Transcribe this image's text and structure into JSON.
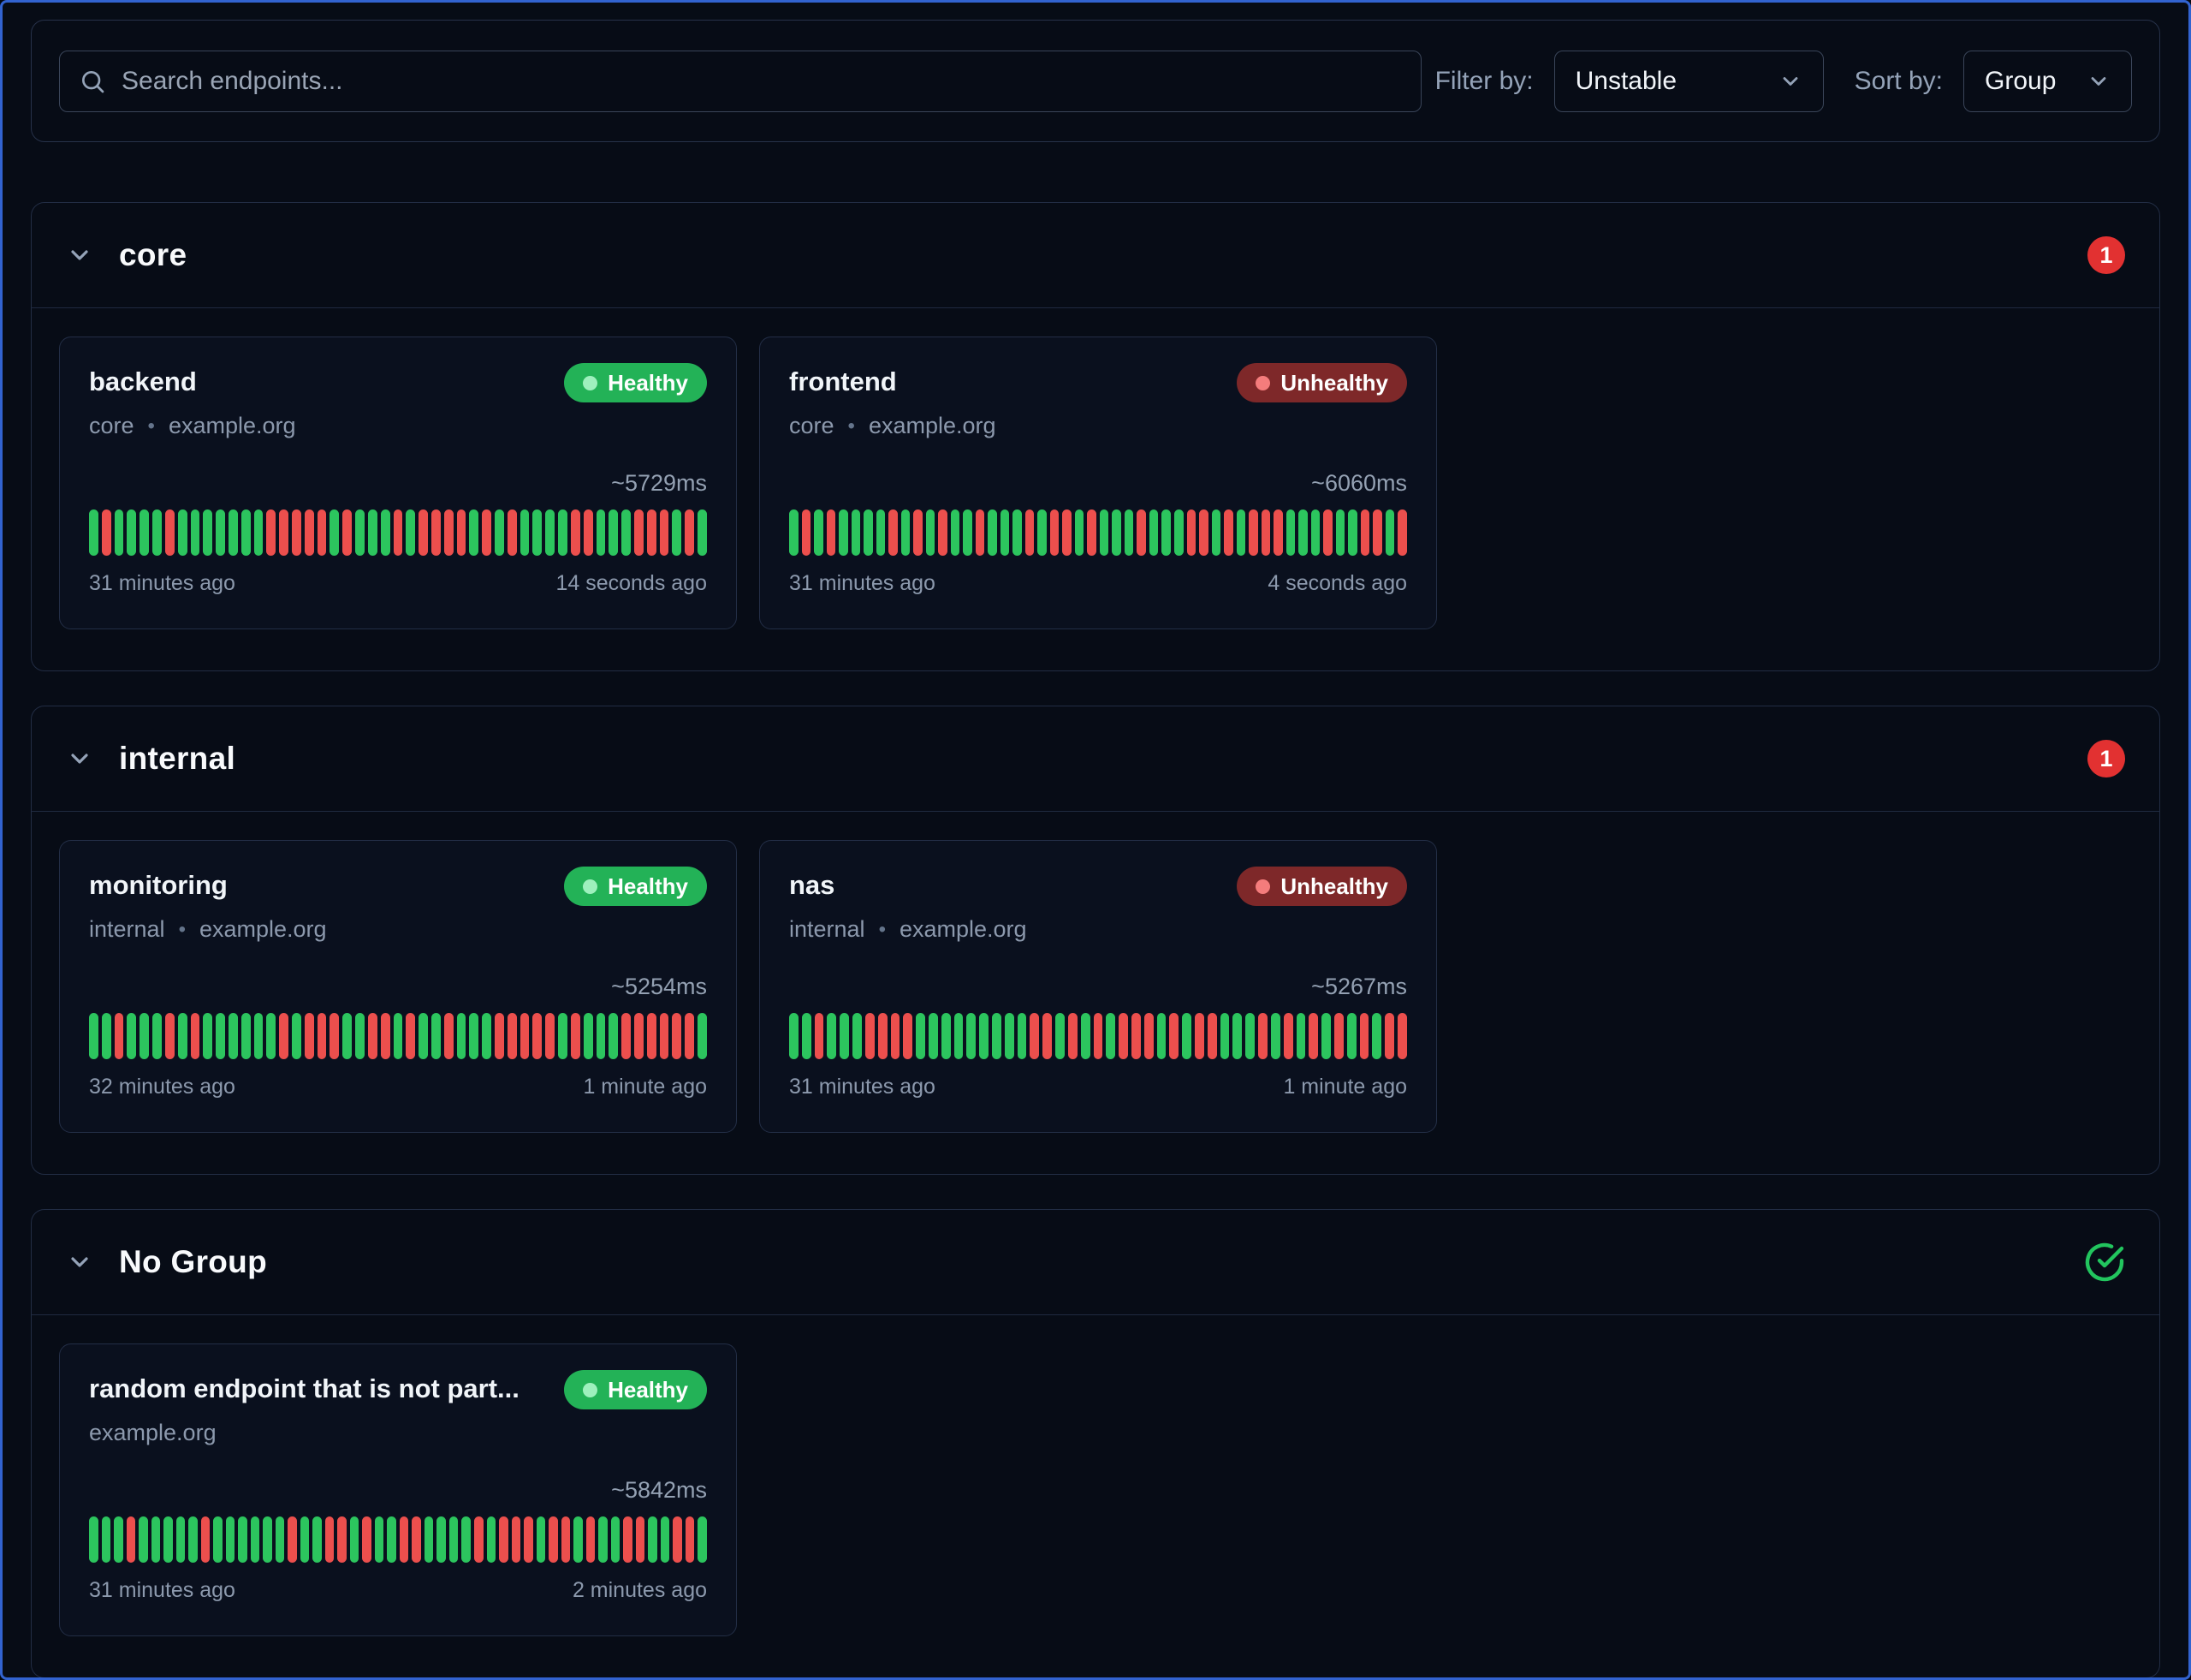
{
  "toolbar": {
    "search_placeholder": "Search endpoints...",
    "filter_label": "Filter by:",
    "filter_value": "Unstable",
    "sort_label": "Sort by:",
    "sort_value": "Group"
  },
  "ui": {
    "separator": "•",
    "icons": {
      "search": "magnifier",
      "dropdown": "chevron-down",
      "group_collapse": "chevron-down",
      "group_all_healthy": "check-circle"
    },
    "colors": {
      "healthy_badge": "#23b257",
      "unhealthy_badge": "#7e2829",
      "bar_success": "#2cc55e",
      "bar_failure": "#ec4f4d",
      "count_badge": "#e23131",
      "check_icon": "#22c55e"
    }
  },
  "groups": [
    {
      "name": "core",
      "indicator": "count",
      "count": "1",
      "endpoints": [
        {
          "name": "backend",
          "status": "Healthy",
          "group": "core",
          "host": "example.org",
          "avg_response": "~5729ms",
          "oldest": "31 minutes ago",
          "newest": "14 seconds ago",
          "results": "GRGGGGRGGGGGGGRRRRRGRGGGRGRRRRGRGRGGGGRRGGGRRRGRG"
        },
        {
          "name": "frontend",
          "status": "Unhealthy",
          "group": "core",
          "host": "example.org",
          "avg_response": "~6060ms",
          "oldest": "31 minutes ago",
          "newest": "4 seconds ago",
          "results": "GRGRGGGGRGRGRGGRGGGRGRRGRGGGRGGGRRGRGRRRGGGRGGRRGR"
        }
      ]
    },
    {
      "name": "internal",
      "indicator": "count",
      "count": "1",
      "endpoints": [
        {
          "name": "monitoring",
          "status": "Healthy",
          "group": "internal",
          "host": "example.org",
          "avg_response": "~5254ms",
          "oldest": "32 minutes ago",
          "newest": "1 minute ago",
          "results": "GGRGGGRGRGGGGGGRGRRRGGRRGRGGRGGGRRRRRGRGGGRRRRRRG"
        },
        {
          "name": "nas",
          "status": "Unhealthy",
          "group": "internal",
          "host": "example.org",
          "avg_response": "~5267ms",
          "oldest": "31 minutes ago",
          "newest": "1 minute ago",
          "results": "GGRGGGRRRRGGGGGGGGGRRGRGRGRRRGRGRRGGGRGRGRGRGRGRR"
        }
      ]
    },
    {
      "name": "No Group",
      "indicator": "check",
      "count": "",
      "endpoints": [
        {
          "name": "random endpoint that is not part...",
          "status": "Healthy",
          "group": "",
          "host": "example.org",
          "avg_response": "~5842ms",
          "oldest": "31 minutes ago",
          "newest": "2 minutes ago",
          "results": "GGGRGGGGGRGGGGGGRGGRRGRGGRRGGGGRGRRRGRRGRGGRRGGRRG"
        }
      ]
    }
  ]
}
